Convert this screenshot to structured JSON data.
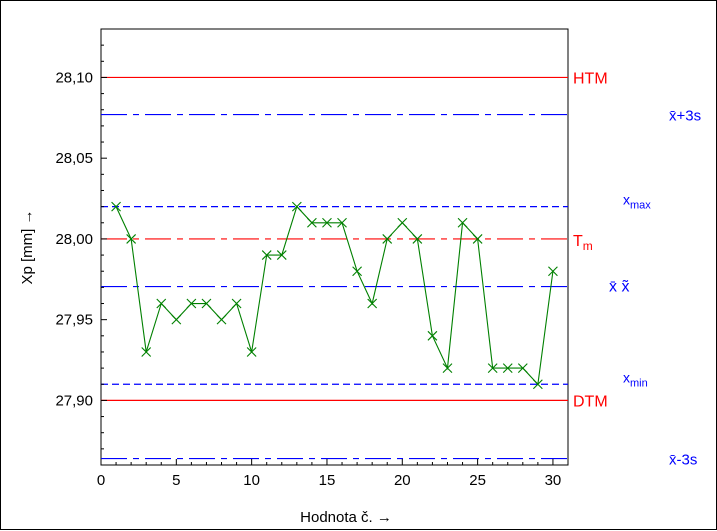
{
  "chart_data": {
    "type": "line",
    "xlabel": "Hodnota č. →",
    "ylabel": "Xp [mm] →",
    "xlim": [
      0,
      31
    ],
    "ylim": [
      27.86,
      28.13
    ],
    "x_ticks": [
      0,
      5,
      10,
      15,
      20,
      25,
      30
    ],
    "x_tick_labels": [
      "0",
      "5",
      "10",
      "15",
      "20",
      "25",
      "30"
    ],
    "y_ticks": [
      27.9,
      27.95,
      28.0,
      28.05,
      28.1
    ],
    "y_tick_labels": [
      "27,90",
      "27,95",
      "28,00",
      "28,05",
      "28,10"
    ],
    "grid": false,
    "series": [
      {
        "color": "#008000",
        "marker": "x",
        "x": [
          1,
          2,
          3,
          4,
          5,
          6,
          7,
          8,
          9,
          10,
          11,
          12,
          13,
          14,
          15,
          16,
          17,
          18,
          19,
          20,
          21,
          22,
          23,
          24,
          25,
          26,
          27,
          28,
          29,
          30
        ],
        "values": [
          28.02,
          28.0,
          27.93,
          27.96,
          27.95,
          27.96,
          27.96,
          27.95,
          27.96,
          27.93,
          27.99,
          27.99,
          28.02,
          28.01,
          28.01,
          28.01,
          27.98,
          27.96,
          28.0,
          28.01,
          28.0,
          27.94,
          27.92,
          28.01,
          28.0,
          27.92,
          27.92,
          27.92,
          27.91,
          27.98
        ]
      }
    ],
    "reference_lines": [
      {
        "label": "HTM",
        "value": 28.1,
        "color": "#ff0000",
        "style": "solid"
      },
      {
        "label": "x̄+3s",
        "value": 28.077,
        "color": "#0000ff",
        "style": "dashdot"
      },
      {
        "label": "x",
        "sub": "max",
        "value": 28.02,
        "color": "#0000ff",
        "style": "dashed"
      },
      {
        "label": "T",
        "sub": "m",
        "value": 28.0,
        "color": "#ff0000",
        "style": "dashdot"
      },
      {
        "label": "x̄  x̃",
        "value": 27.9705,
        "color": "#0000ff",
        "style": "dashdot"
      },
      {
        "label": "x",
        "sub": "min",
        "value": 27.91,
        "color": "#0000ff",
        "style": "dashed"
      },
      {
        "label": "DTM",
        "value": 27.9,
        "color": "#ff0000",
        "style": "solid"
      },
      {
        "label": "x̄-3s",
        "value": 27.864,
        "color": "#0000ff",
        "style": "dashdot"
      }
    ]
  }
}
